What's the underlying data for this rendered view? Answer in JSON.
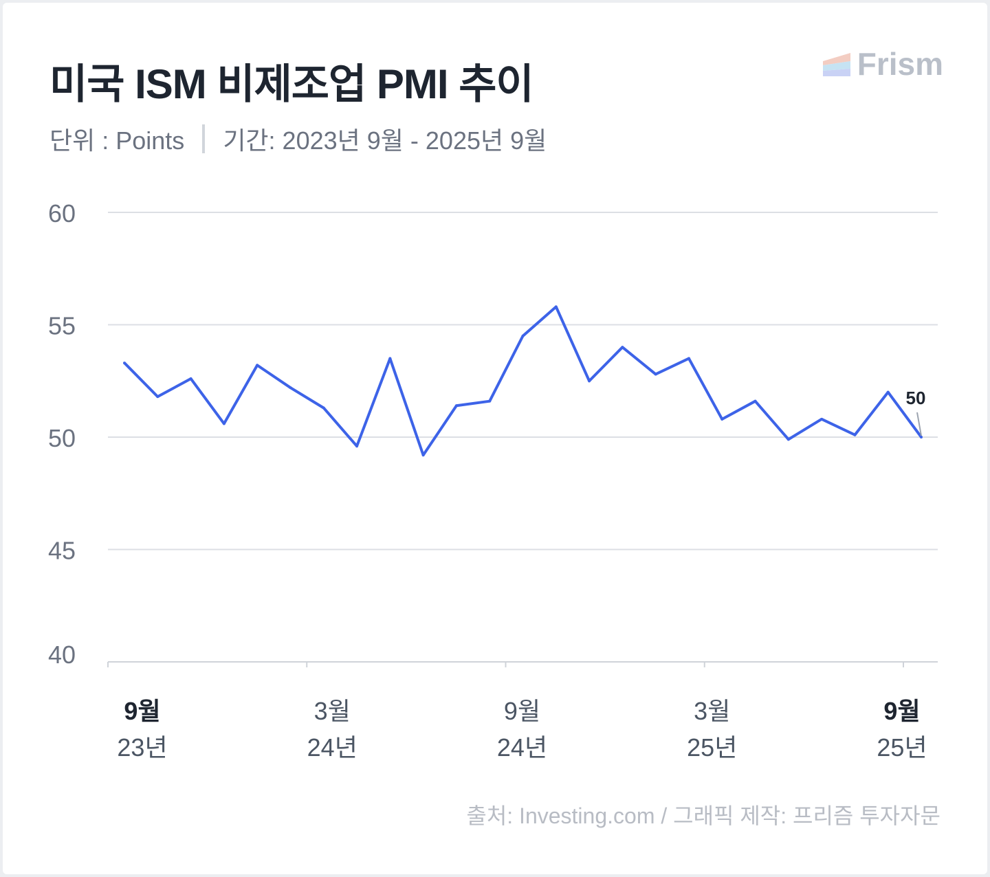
{
  "header": {
    "title": "미국 ISM 비제조업 PMI 추이",
    "unit": "단위 : Points",
    "period": "기간: 2023년 9월 - 2025년 9월",
    "logo_text": "Frism"
  },
  "footer": {
    "source": "출처: Investing.com / 그래픽 제작: 프리즘 투자자문"
  },
  "chart_data": {
    "type": "line",
    "title": "미국 ISM 비제조업 PMI 추이",
    "ylabel": "Points",
    "ylim": [
      40,
      60
    ],
    "yticks": [
      "40",
      "45",
      "50",
      "55",
      "60"
    ],
    "grid": true,
    "line_color": "#3d63e8",
    "x": [
      "2023-09",
      "2023-10",
      "2023-11",
      "2023-12",
      "2024-01",
      "2024-02",
      "2024-03",
      "2024-04",
      "2024-05",
      "2024-06",
      "2024-07",
      "2024-08",
      "2024-09",
      "2024-10",
      "2024-11",
      "2024-12",
      "2025-01",
      "2025-02",
      "2025-03",
      "2025-04",
      "2025-05",
      "2025-06",
      "2025-07",
      "2025-08",
      "2025-09"
    ],
    "series": [
      {
        "name": "ISM 비제조업 PMI",
        "values": [
          53.3,
          51.8,
          52.6,
          50.6,
          53.2,
          52.2,
          51.3,
          49.6,
          53.5,
          49.2,
          51.4,
          51.6,
          54.5,
          55.8,
          52.5,
          54.0,
          52.8,
          53.5,
          50.8,
          51.6,
          49.9,
          50.8,
          50.1,
          52.0,
          50.0
        ]
      }
    ],
    "xtick_labels": [
      {
        "month": "9월",
        "year": "23년",
        "bold": true
      },
      {
        "month": "3월",
        "year": "24년",
        "bold": false
      },
      {
        "month": "9월",
        "year": "24년",
        "bold": false
      },
      {
        "month": "3월",
        "year": "25년",
        "bold": false
      },
      {
        "month": "9월",
        "year": "25년",
        "bold": true
      }
    ],
    "annotation": {
      "label": "50",
      "index": 24
    }
  }
}
